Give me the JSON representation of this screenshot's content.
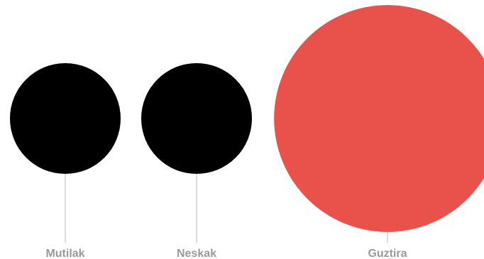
{
  "chart_data": {
    "type": "bubble",
    "categories": [
      "Mutilak",
      "Neskak",
      "Guztira"
    ],
    "values": [
      1,
      1,
      4.2
    ],
    "series_colors": {
      "Mutilak": "#000000",
      "Neskak": "#000000",
      "Guztira": "#e9524a"
    },
    "grid": false,
    "legend": "none"
  },
  "colors": {
    "leader_line": "#c4c4c4",
    "label_text": "#9a9a9a",
    "background": "#ffffff"
  }
}
